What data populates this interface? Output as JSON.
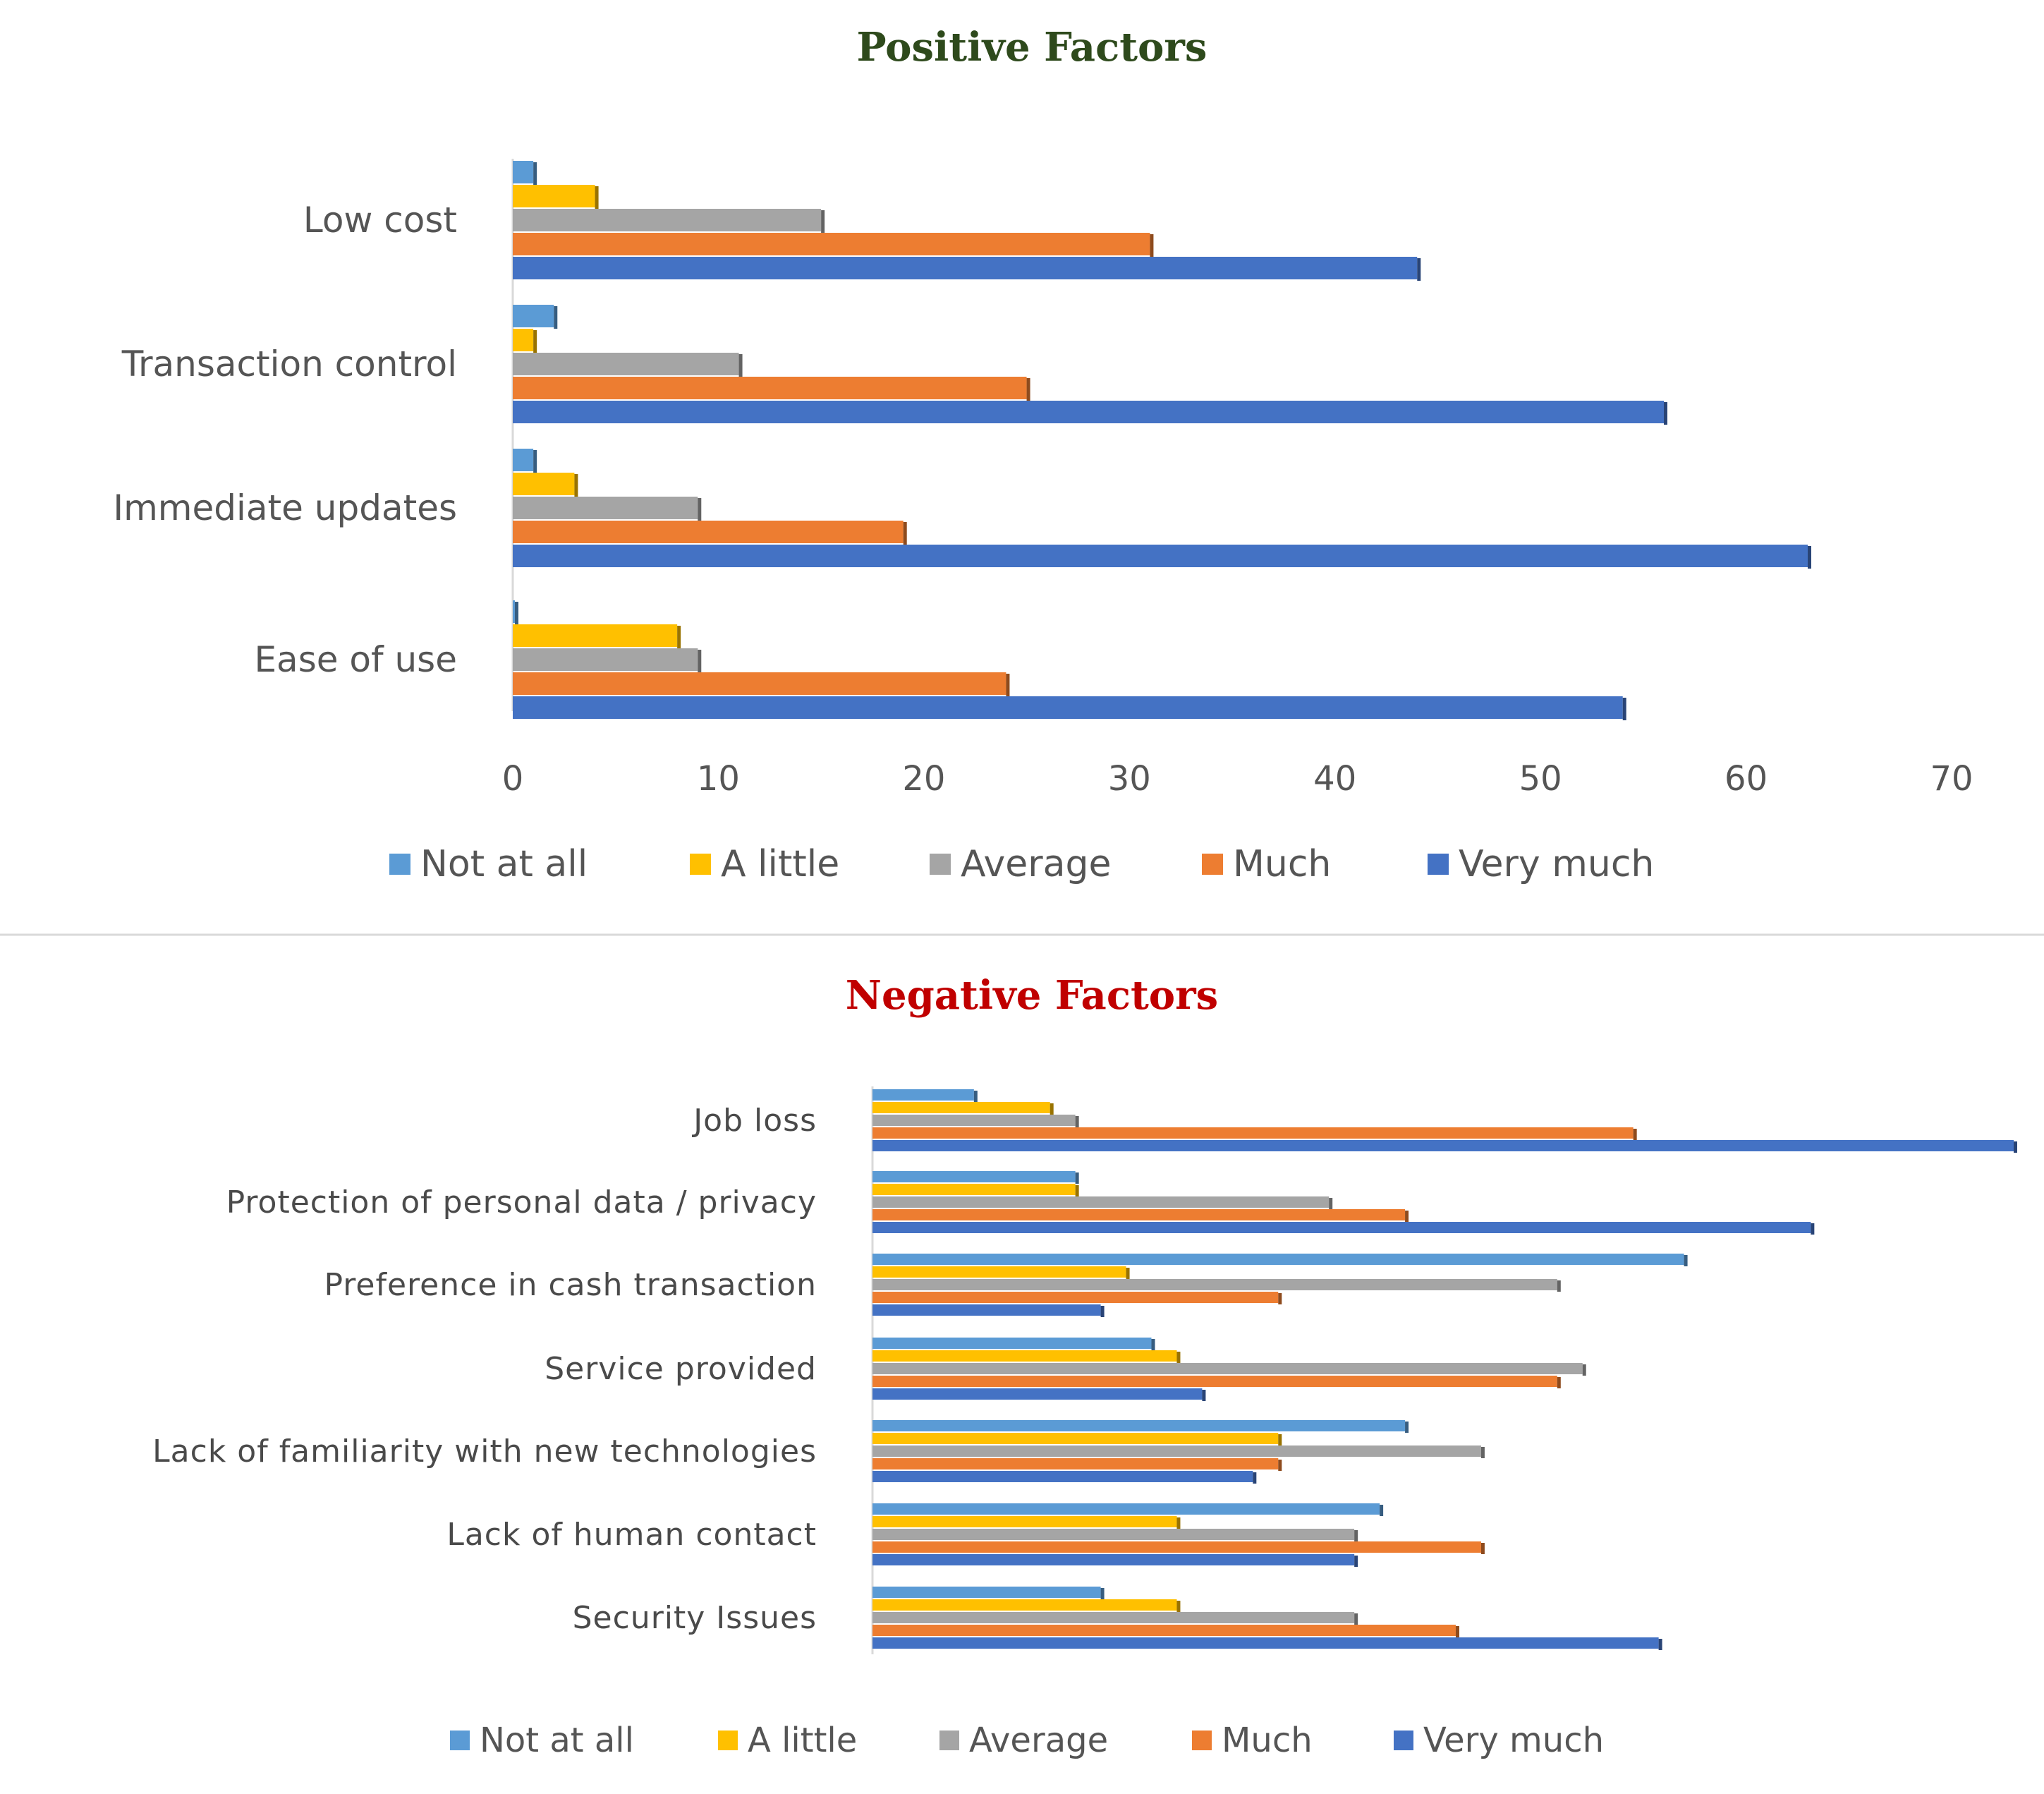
{
  "chart_data": [
    {
      "type": "bar",
      "orientation": "horizontal",
      "title": "Positive Factors",
      "title_color": "#2e4a1c",
      "categories": [
        "Low cost",
        "Transaction control",
        "Immediate updates",
        "Ease of use"
      ],
      "series": [
        {
          "name": "Not at all",
          "color": "#5b9bd5",
          "values": [
            1,
            2,
            1,
            0
          ]
        },
        {
          "name": "A little",
          "color": "#ffc000",
          "values": [
            4,
            1,
            3,
            8
          ]
        },
        {
          "name": "Average",
          "color": "#a5a5a5",
          "values": [
            15,
            11,
            9,
            9
          ]
        },
        {
          "name": "Much",
          "color": "#ed7d31",
          "values": [
            31,
            25,
            19,
            24
          ]
        },
        {
          "name": "Very much",
          "color": "#4472c4",
          "values": [
            44,
            56,
            63,
            54
          ]
        }
      ],
      "xlim": [
        0,
        70
      ],
      "xticks": [
        "0",
        "10",
        "20",
        "30",
        "40",
        "50",
        "60",
        "70"
      ],
      "legend": "bottom",
      "grid": false
    },
    {
      "type": "bar",
      "orientation": "horizontal",
      "title": "Negative Factors",
      "title_color": "#c00000",
      "categories": [
        "Job loss",
        "Protection of personal data / privacy",
        "Preference in cash transaction",
        "Service provided",
        "Lack of familiarity with new technologies",
        "Lack of human contact",
        "Security Issues"
      ],
      "series": [
        {
          "name": "Not at all",
          "color": "#5b9bd5",
          "values": [
            4,
            8,
            32,
            11,
            21,
            20,
            9
          ]
        },
        {
          "name": "A little",
          "color": "#ffc000",
          "values": [
            7,
            8,
            10,
            12,
            16,
            12,
            12
          ]
        },
        {
          "name": "Average",
          "color": "#a5a5a5",
          "values": [
            8,
            18,
            27,
            28,
            24,
            19,
            19
          ]
        },
        {
          "name": "Much",
          "color": "#ed7d31",
          "values": [
            30,
            21,
            16,
            27,
            16,
            24,
            23
          ]
        },
        {
          "name": "Very much",
          "color": "#4472c4",
          "values": [
            45,
            37,
            9,
            13,
            15,
            19,
            31
          ]
        }
      ],
      "xlim": [
        0,
        45
      ],
      "legend": "bottom",
      "grid": false
    }
  ]
}
